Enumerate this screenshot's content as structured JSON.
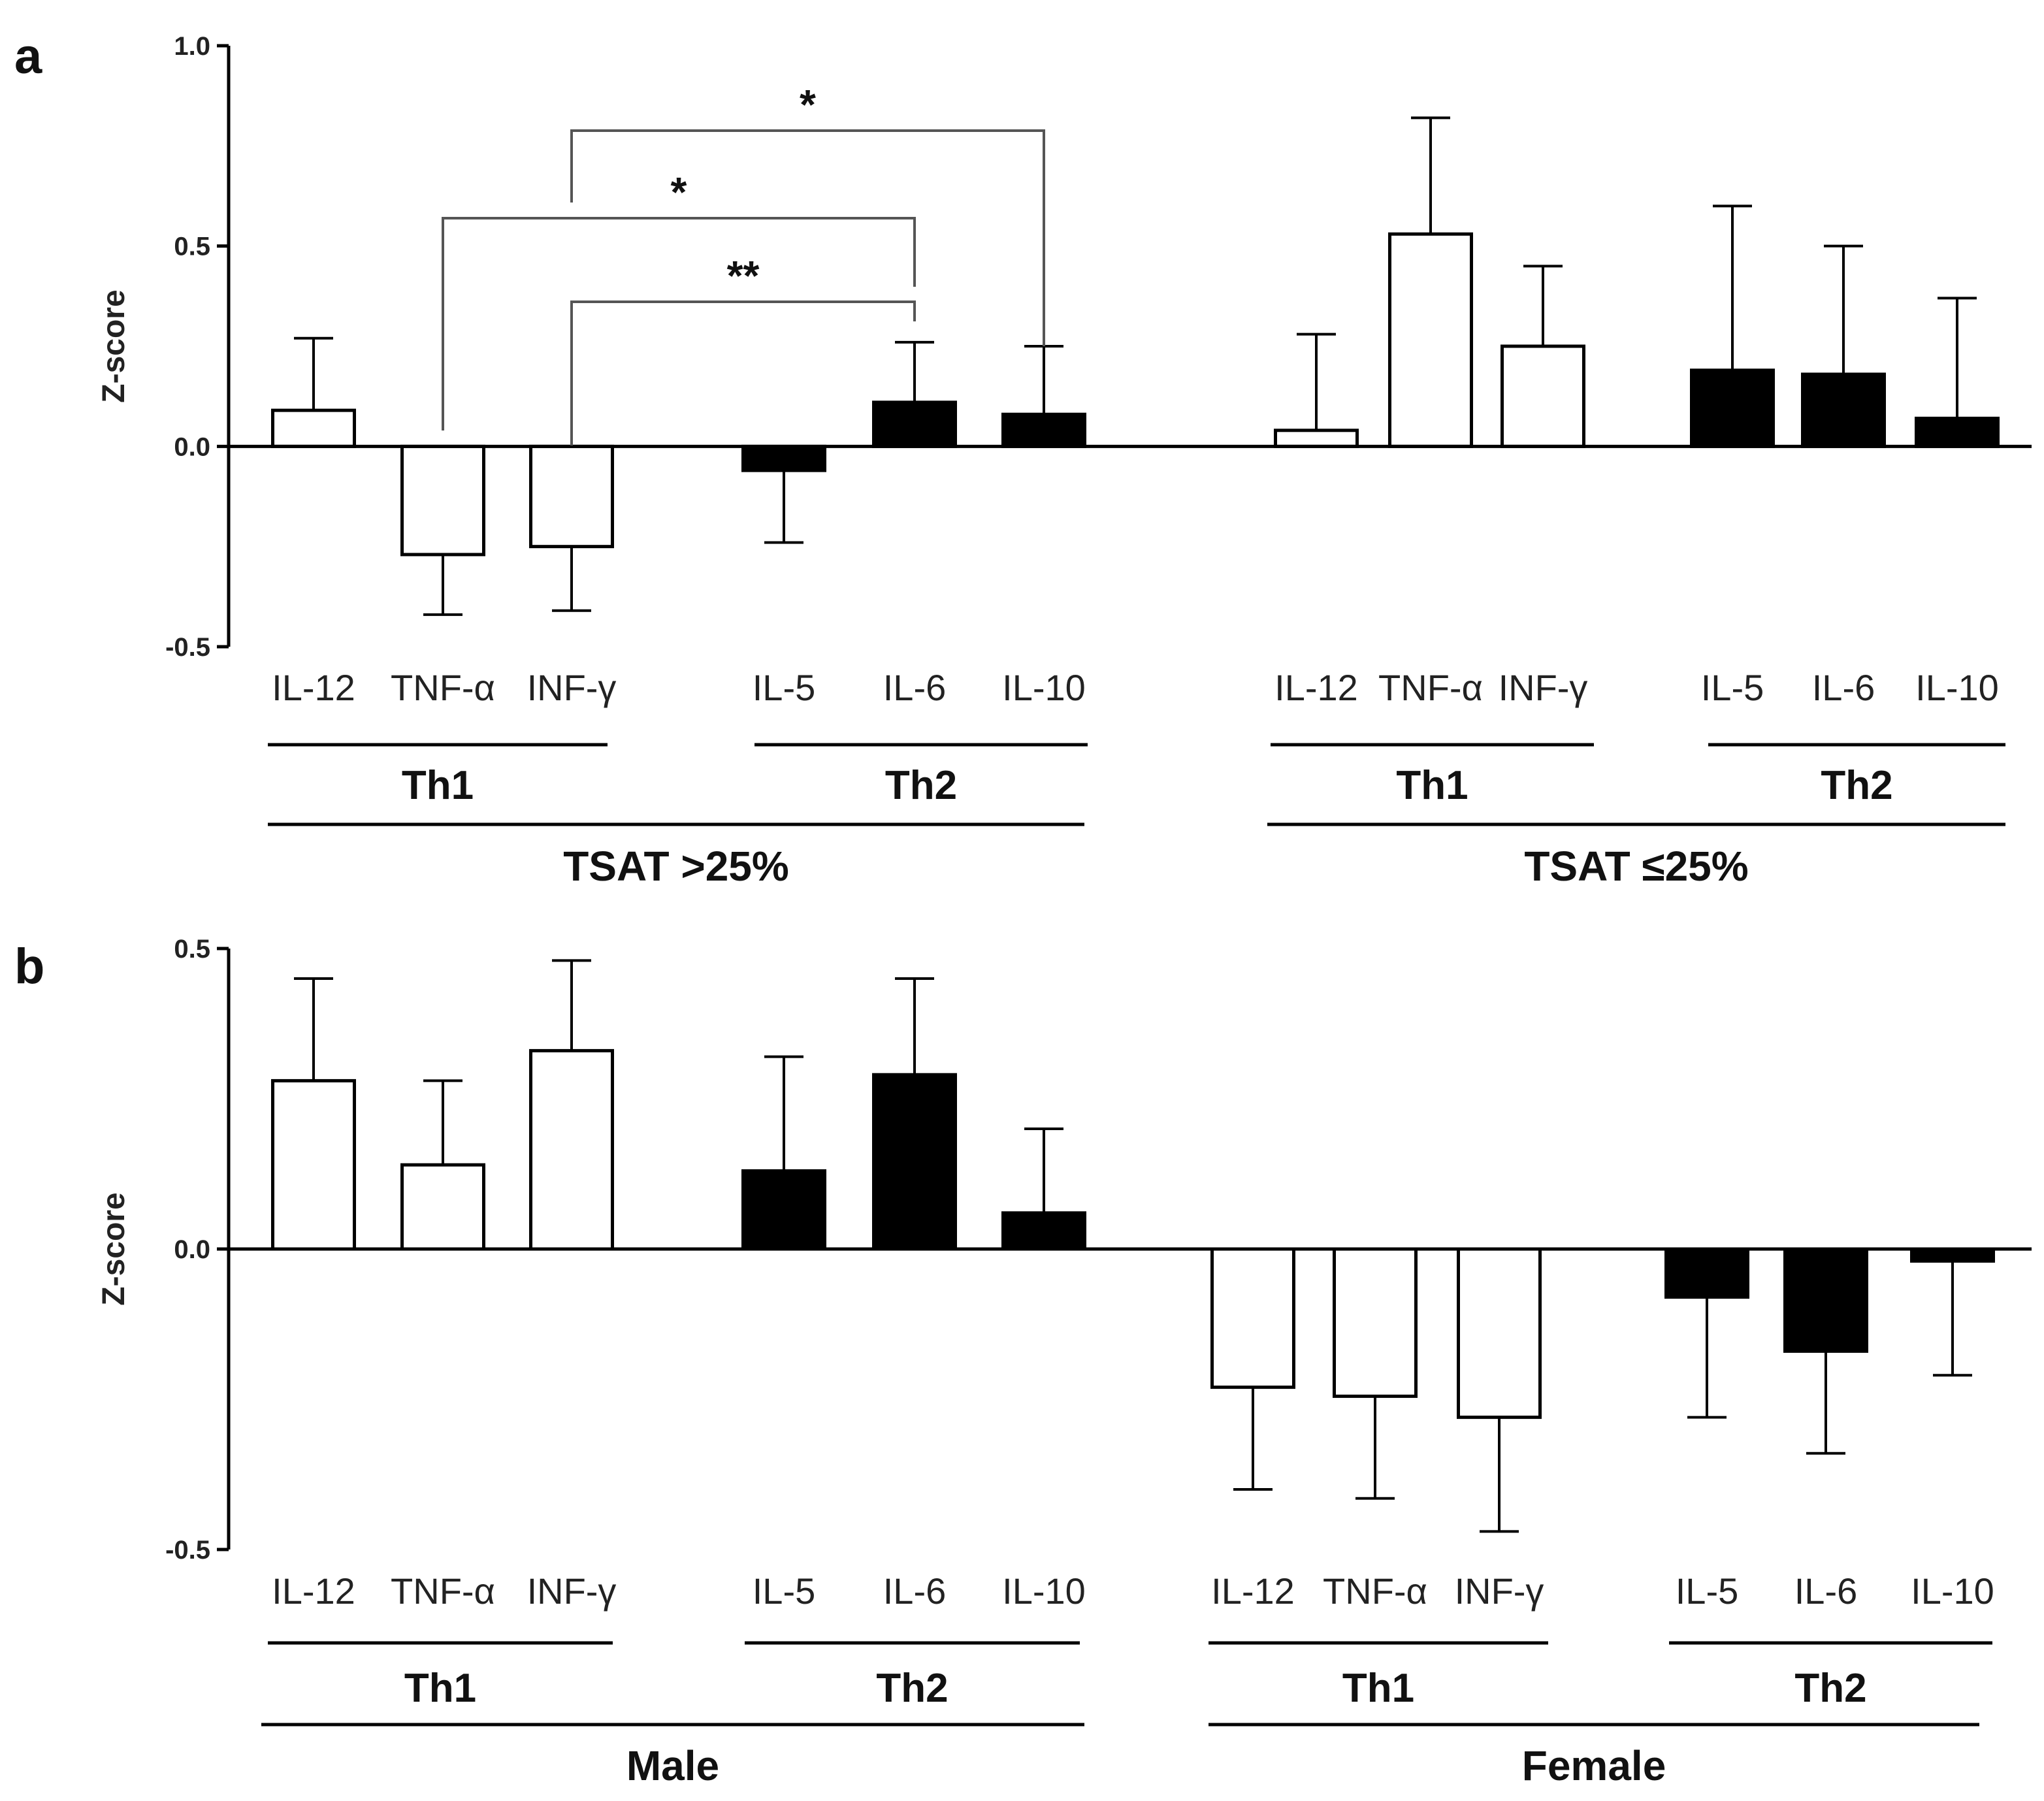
{
  "chart_data": [
    {
      "type": "bar",
      "panel": "a",
      "ylabel": "Z-score",
      "ylim": [
        -0.5,
        1.0
      ],
      "yticks": [
        "1.0",
        "0.5",
        "0.0",
        "-0.5"
      ],
      "ytick_values": [
        1.0,
        0.5,
        0.0,
        -0.5
      ],
      "groups": [
        {
          "super_label": "TSAT >25%",
          "subgroups": [
            {
              "label": "Th1",
              "fill": "#ffffff",
              "bars": [
                {
                  "category": "IL-12",
                  "value": 0.09,
                  "error": 0.18
                },
                {
                  "category": "TNF-α",
                  "value": -0.27,
                  "error": 0.15
                },
                {
                  "category": "INF-γ",
                  "value": -0.25,
                  "error": 0.16
                }
              ]
            },
            {
              "label": "Th2",
              "fill": "#000000",
              "bars": [
                {
                  "category": "IL-5",
                  "value": -0.06,
                  "error": 0.18
                },
                {
                  "category": "IL-6",
                  "value": 0.11,
                  "error": 0.15
                },
                {
                  "category": "IL-10",
                  "value": 0.08,
                  "error": 0.17
                }
              ]
            }
          ]
        },
        {
          "super_label": "TSAT ≤25%",
          "subgroups": [
            {
              "label": "Th1",
              "fill": "#ffffff",
              "bars": [
                {
                  "category": "IL-12",
                  "value": 0.04,
                  "error": 0.24
                },
                {
                  "category": "TNF-α",
                  "value": 0.53,
                  "error": 0.29
                },
                {
                  "category": "INF-γ",
                  "value": 0.25,
                  "error": 0.2
                }
              ]
            },
            {
              "label": "Th2",
              "fill": "#000000",
              "bars": [
                {
                  "category": "IL-5",
                  "value": 0.19,
                  "error": 0.41
                },
                {
                  "category": "IL-6",
                  "value": 0.18,
                  "error": 0.32
                },
                {
                  "category": "IL-10",
                  "value": 0.07,
                  "error": 0.3
                }
              ]
            }
          ]
        }
      ],
      "annotations": [
        {
          "from": "INF-γ",
          "to": "IL-10",
          "group": 0,
          "label": "*"
        },
        {
          "from": "TNF-α",
          "to": "IL-6",
          "group": 0,
          "label": "*"
        },
        {
          "from": "INF-γ",
          "to": "IL-6",
          "group": 0,
          "label": "**"
        }
      ]
    },
    {
      "type": "bar",
      "panel": "b",
      "ylabel": "Z-score",
      "ylim": [
        -0.5,
        0.5
      ],
      "yticks": [
        "0.5",
        "0.0",
        "-0.5"
      ],
      "ytick_values": [
        0.5,
        0.0,
        -0.5
      ],
      "groups": [
        {
          "super_label": "Male",
          "subgroups": [
            {
              "label": "Th1",
              "fill": "#ffffff",
              "bars": [
                {
                  "category": "IL-12",
                  "value": 0.28,
                  "error": 0.17
                },
                {
                  "category": "TNF-α",
                  "value": 0.14,
                  "error": 0.14
                },
                {
                  "category": "INF-γ",
                  "value": 0.33,
                  "error": 0.15
                }
              ]
            },
            {
              "label": "Th2",
              "fill": "#000000",
              "bars": [
                {
                  "category": "IL-5",
                  "value": 0.13,
                  "error": 0.19
                },
                {
                  "category": "IL-6",
                  "value": 0.29,
                  "error": 0.16
                },
                {
                  "category": "IL-10",
                  "value": 0.06,
                  "error": 0.14
                }
              ]
            }
          ]
        },
        {
          "super_label": "Female",
          "subgroups": [
            {
              "label": "Th1",
              "fill": "#ffffff",
              "bars": [
                {
                  "category": "IL-12",
                  "value": -0.23,
                  "error": 0.17
                },
                {
                  "category": "TNF-α",
                  "value": -0.245,
                  "error": 0.17
                },
                {
                  "category": "INF-γ",
                  "value": -0.28,
                  "error": 0.19
                }
              ]
            },
            {
              "label": "Th2",
              "fill": "#000000",
              "bars": [
                {
                  "category": "IL-5",
                  "value": -0.08,
                  "error": 0.2
                },
                {
                  "category": "IL-6",
                  "value": -0.17,
                  "error": 0.17
                },
                {
                  "category": "IL-10",
                  "value": -0.02,
                  "error": 0.19
                }
              ]
            }
          ]
        }
      ],
      "annotations": []
    }
  ]
}
